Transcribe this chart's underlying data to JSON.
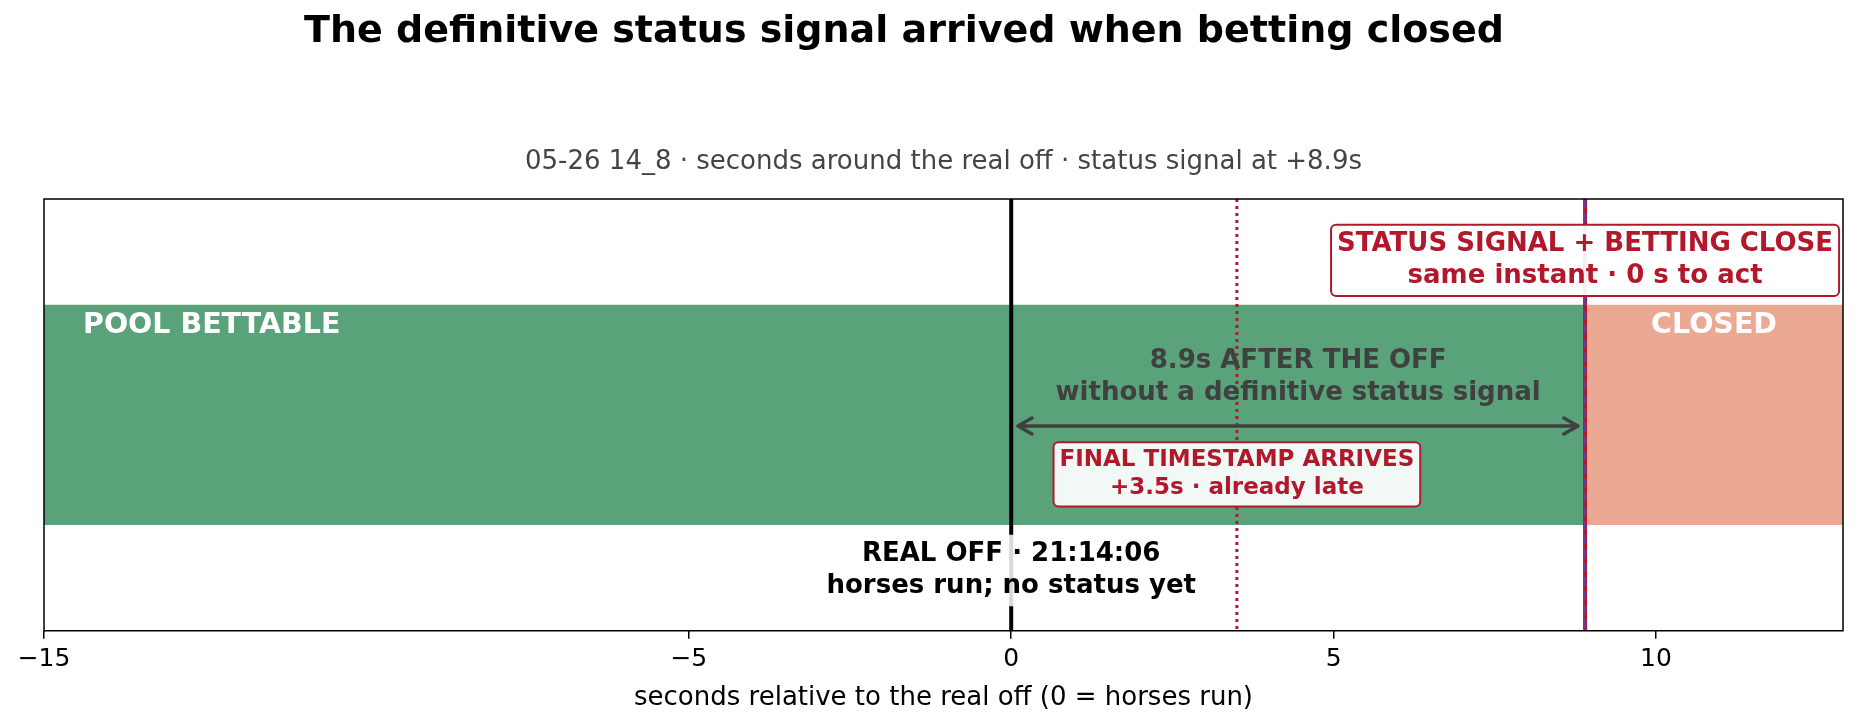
{
  "chart_data": {
    "type": "bar",
    "orientation": "horizontal",
    "title": "The definitive status signal arrived when betting closed",
    "subtitle": "05-26 14_8 · seconds around the real off · status signal at +8.9s",
    "xlabel": "seconds relative to the real off (0 = horses run)",
    "categories": [
      null
    ],
    "series": [
      {
        "name": "POOL BETTABLE",
        "color": "#59a27a",
        "base": [
          -15
        ],
        "values": [
          23.9
        ]
      },
      {
        "name": "CLOSED",
        "color": "#eba993",
        "base": [
          8.9
        ],
        "values": [
          4.0
        ]
      }
    ],
    "xlim": [
      -15,
      12.9
    ],
    "xticks": [
      {
        "value": -15,
        "label": "−15"
      },
      {
        "value": -5,
        "label": "−5"
      },
      0,
      5,
      10
    ],
    "ref_lines": [
      {
        "axis": "x",
        "value": 0,
        "color": "#000000",
        "line_style": "solid"
      },
      {
        "axis": "x",
        "value": 3.5,
        "color": "#b2182b",
        "line_style": "dotted",
        "label": "FINAL TIMESTAMP ARRIVES\n+3.5s · already late"
      },
      {
        "axis": "x",
        "value": 8.9,
        "color": "#b2182b",
        "line_style": "solid",
        "label": "STATUS SIGNAL + BETTING CLOSE\nsame instant · 0 s to act"
      },
      {
        "axis": "x",
        "value": 8.9,
        "color": "#5a3fa0",
        "line_style": "dashed"
      }
    ],
    "annotations": [
      "8.9s AFTER THE OFF\nwithout a definitive status signal",
      {
        "text": "REAL OFF · 21:14:06\nhorses run; no status yet",
        "x": 0
      }
    ],
    "grid": false,
    "legend": false
  }
}
